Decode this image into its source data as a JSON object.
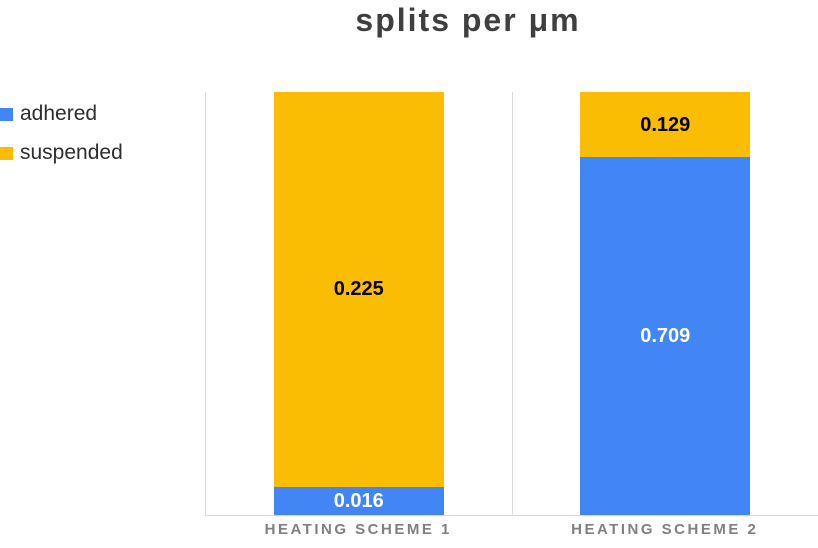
{
  "chart_data": {
    "type": "bar",
    "stacking": "percent",
    "title": "splits per μm",
    "categories": [
      "HEATING SCHEME 1",
      "HEATING SCHEME 2"
    ],
    "series": [
      {
        "name": "adhered",
        "color": "#4285F4",
        "label_color": "#FFFFFF",
        "values": [
          0.016,
          0.709
        ]
      },
      {
        "name": "suspended",
        "color": "#FBBC04",
        "label_color": "#000000",
        "values": [
          0.225,
          0.129
        ]
      }
    ],
    "value_label_decimals": 3,
    "legend_position": "left",
    "grid": false,
    "axis_line_color": "#D9D9D9",
    "category_label_color": "#808080",
    "title_color": "#3F3F3F"
  }
}
